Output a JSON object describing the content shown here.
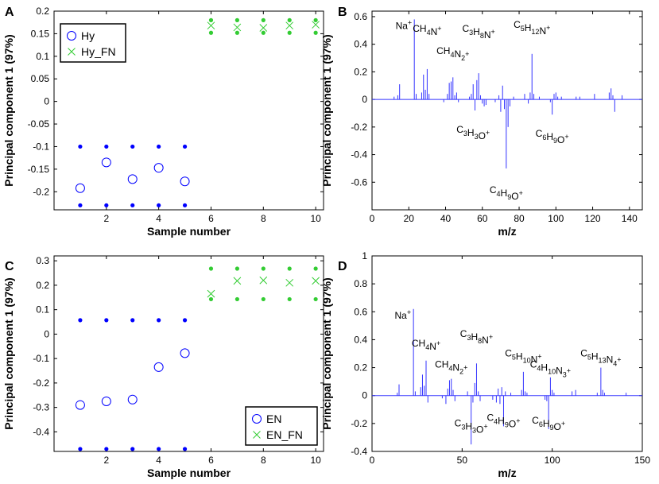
{
  "colors": {
    "hy": "#0000ff",
    "fn": "#33cc33",
    "spectrum": "#3333ff",
    "axis": "#000000"
  },
  "chart_data": [
    {
      "panel": "A",
      "type": "scatter",
      "xlabel": "Sample number",
      "ylabel": "Principal component 1 (97%)",
      "xlim": [
        0,
        10.3
      ],
      "ylim": [
        -0.24,
        0.2
      ],
      "xticks": [
        2,
        4,
        6,
        8,
        10
      ],
      "xtick_labels": [
        "2",
        "4",
        "6",
        "8",
        "10"
      ],
      "yticks": [
        0.2,
        0.15,
        0.1,
        0.05,
        0,
        -0.05,
        -0.1,
        -0.15,
        -0.2
      ],
      "ytick_labels": [
        "0.2",
        "0.15",
        "0.1",
        "0.05",
        "0",
        "-0.05",
        "-0.1",
        "-0.15",
        "-0.2"
      ],
      "legend": {
        "position": "top-left",
        "entries": [
          "Hy",
          "Hy_FN"
        ]
      },
      "series": [
        {
          "name": "Hy",
          "marker": "circle",
          "x": [
            1,
            2,
            3,
            4,
            5
          ],
          "y": [
            -0.192,
            -0.135,
            -0.172,
            -0.147,
            -0.177
          ],
          "upper": [
            -0.1,
            -0.1,
            -0.1,
            -0.1,
            -0.1
          ],
          "lower": [
            -0.23,
            -0.23,
            -0.23,
            -0.23,
            -0.23
          ]
        },
        {
          "name": "Hy_FN",
          "marker": "x",
          "x": [
            6,
            7,
            8,
            9,
            10
          ],
          "y": [
            0.168,
            0.164,
            0.163,
            0.168,
            0.17
          ],
          "upper": [
            0.18,
            0.18,
            0.18,
            0.18,
            0.18
          ],
          "lower": [
            0.152,
            0.152,
            0.152,
            0.152,
            0.152
          ]
        }
      ]
    },
    {
      "panel": "B",
      "type": "stem",
      "xlabel": "m/z",
      "ylabel": "Principal component 1 (97%)",
      "xlim": [
        0,
        147
      ],
      "ylim": [
        -0.8,
        0.64
      ],
      "xticks": [
        0,
        20,
        40,
        60,
        80,
        100,
        120,
        140
      ],
      "xtick_labels": [
        "0",
        "20",
        "40",
        "60",
        "80",
        "100",
        "120",
        "140"
      ],
      "yticks": [
        0.6,
        0.4,
        0.2,
        0,
        -0.2,
        -0.4,
        -0.6
      ],
      "ytick_labels": [
        "0.6",
        "0.4",
        "0.2",
        "0",
        "-0.2",
        "-0.4",
        "-0.6"
      ],
      "peaks": [
        [
          12,
          0.02
        ],
        [
          14,
          0.03
        ],
        [
          15,
          0.11
        ],
        [
          23,
          0.58
        ],
        [
          24,
          0.04
        ],
        [
          27,
          0.05
        ],
        [
          28,
          0.18
        ],
        [
          29,
          0.07
        ],
        [
          30,
          0.22
        ],
        [
          31,
          0.04
        ],
        [
          39,
          -0.02
        ],
        [
          41,
          0.04
        ],
        [
          42,
          0.12
        ],
        [
          43,
          0.13
        ],
        [
          44,
          0.16
        ],
        [
          45,
          0.03
        ],
        [
          46,
          0.05
        ],
        [
          47,
          -0.02
        ],
        [
          53,
          0.02
        ],
        [
          54,
          0.04
        ],
        [
          55,
          0.11
        ],
        [
          56,
          -0.08
        ],
        [
          57,
          0.14
        ],
        [
          58,
          0.19
        ],
        [
          59,
          0.03
        ],
        [
          60,
          -0.03
        ],
        [
          61,
          -0.05
        ],
        [
          62,
          -0.04
        ],
        [
          67,
          -0.02
        ],
        [
          69,
          0.03
        ],
        [
          70,
          -0.09
        ],
        [
          71,
          0.1
        ],
        [
          72,
          -0.07
        ],
        [
          73,
          -0.5
        ],
        [
          74,
          -0.2
        ],
        [
          75,
          -0.05
        ],
        [
          77,
          0.02
        ],
        [
          83,
          0.04
        ],
        [
          85,
          -0.03
        ],
        [
          86,
          0.05
        ],
        [
          87,
          0.33
        ],
        [
          88,
          0.04
        ],
        [
          91,
          0.02
        ],
        [
          97,
          -0.02
        ],
        [
          98,
          -0.11
        ],
        [
          99,
          0.04
        ],
        [
          100,
          0.05
        ],
        [
          101,
          0.02
        ],
        [
          103,
          0.02
        ],
        [
          111,
          0.02
        ],
        [
          113,
          0.02
        ],
        [
          121,
          0.04
        ],
        [
          129,
          0.05
        ],
        [
          130,
          0.08
        ],
        [
          131,
          0.03
        ],
        [
          132,
          -0.09
        ],
        [
          136,
          0.03
        ]
      ],
      "annotations": [
        {
          "label": "Na+",
          "x": 23,
          "y": 0.58
        },
        {
          "label": "CH4N+",
          "x": 30,
          "y": 0.49
        },
        {
          "label": "CH4N2+",
          "x": 44,
          "y": 0.33
        },
        {
          "label": "C3H8N+",
          "x": 58,
          "y": 0.49
        },
        {
          "label": "C5H12N+",
          "x": 87,
          "y": 0.52
        },
        {
          "label": "C3H3O+",
          "x": 55,
          "y": -0.24
        },
        {
          "label": "C6H9O+",
          "x": 98,
          "y": -0.27
        },
        {
          "label": "C4H9O+",
          "x": 73,
          "y": -0.68
        }
      ]
    },
    {
      "panel": "C",
      "type": "scatter",
      "xlabel": "Sample number",
      "ylabel": "Principal component 1 (97%)",
      "xlim": [
        0,
        10.3
      ],
      "ylim": [
        -0.48,
        0.32
      ],
      "xticks": [
        2,
        4,
        6,
        8,
        10
      ],
      "xtick_labels": [
        "2",
        "4",
        "6",
        "8",
        "10"
      ],
      "yticks": [
        0.3,
        0.2,
        0.1,
        0,
        -0.1,
        -0.2,
        -0.3,
        -0.4
      ],
      "ytick_labels": [
        "0.3",
        "0.2",
        "0.1",
        "0",
        "-0.1",
        "-0.2",
        "-0.3",
        "-0.4"
      ],
      "legend": {
        "position": "bottom-right",
        "entries": [
          "EN",
          "EN_FN"
        ]
      },
      "series": [
        {
          "name": "EN",
          "marker": "circle",
          "x": [
            1,
            2,
            3,
            4,
            5
          ],
          "y": [
            -0.29,
            -0.275,
            -0.268,
            -0.135,
            -0.078
          ],
          "upper": [
            0.057,
            0.057,
            0.057,
            0.057,
            0.057
          ],
          "lower": [
            -0.47,
            -0.47,
            -0.47,
            -0.47,
            -0.47
          ]
        },
        {
          "name": "EN_FN",
          "marker": "x",
          "x": [
            6,
            7,
            8,
            9,
            10
          ],
          "y": [
            0.165,
            0.218,
            0.22,
            0.21,
            0.218
          ],
          "upper": [
            0.268,
            0.268,
            0.268,
            0.268,
            0.268
          ],
          "lower": [
            0.143,
            0.143,
            0.143,
            0.143,
            0.143
          ]
        }
      ]
    },
    {
      "panel": "D",
      "type": "stem",
      "xlabel": "m/z",
      "ylabel": "Principal component 1 (97%)",
      "xlim": [
        0,
        150
      ],
      "ylim": [
        -0.4,
        1.0
      ],
      "xticks": [
        0,
        50,
        100,
        150
      ],
      "xtick_labels": [
        "0",
        "50",
        "100",
        "150"
      ],
      "yticks": [
        1,
        0.8,
        0.6,
        0.4,
        0.2,
        0,
        -0.2,
        -0.4
      ],
      "ytick_labels": [
        "1",
        "0.8",
        "0.6",
        "0.4",
        "0.2",
        "0",
        "-0.2",
        "-0.4"
      ],
      "peaks": [
        [
          14,
          0.02
        ],
        [
          15,
          0.08
        ],
        [
          23,
          0.62
        ],
        [
          24,
          0.03
        ],
        [
          27,
          0.06
        ],
        [
          28,
          0.15
        ],
        [
          29,
          0.07
        ],
        [
          30,
          0.25
        ],
        [
          31,
          -0.05
        ],
        [
          39,
          -0.02
        ],
        [
          41,
          -0.06
        ],
        [
          42,
          0.05
        ],
        [
          43,
          0.11
        ],
        [
          44,
          0.12
        ],
        [
          45,
          0.04
        ],
        [
          46,
          -0.04
        ],
        [
          53,
          0.03
        ],
        [
          55,
          -0.35
        ],
        [
          56,
          -0.05
        ],
        [
          57,
          0.09
        ],
        [
          58,
          0.23
        ],
        [
          59,
          0.03
        ],
        [
          60,
          -0.04
        ],
        [
          67,
          -0.03
        ],
        [
          69,
          -0.05
        ],
        [
          70,
          0.05
        ],
        [
          71,
          -0.06
        ],
        [
          72,
          0.06
        ],
        [
          73,
          -0.22
        ],
        [
          74,
          0.03
        ],
        [
          77,
          0.02
        ],
        [
          83,
          0.04
        ],
        [
          84,
          0.17
        ],
        [
          85,
          0.03
        ],
        [
          86,
          0.02
        ],
        [
          96,
          -0.03
        ],
        [
          97,
          -0.04
        ],
        [
          98,
          -0.24
        ],
        [
          99,
          0.13
        ],
        [
          100,
          0.04
        ],
        [
          101,
          0.02
        ],
        [
          111,
          0.03
        ],
        [
          113,
          0.04
        ],
        [
          125,
          0.02
        ],
        [
          127,
          0.2
        ],
        [
          128,
          0.04
        ],
        [
          129,
          0.02
        ],
        [
          141,
          0.02
        ]
      ],
      "annotations": [
        {
          "label": "Na+",
          "x": 23,
          "y": 0.62
        },
        {
          "label": "CH4N+",
          "x": 30,
          "y": 0.35
        },
        {
          "label": "CH4N2+",
          "x": 44,
          "y": 0.2
        },
        {
          "label": "C3H8N+",
          "x": 58,
          "y": 0.42
        },
        {
          "label": "C5H10N+",
          "x": 84,
          "y": 0.28
        },
        {
          "label": "C4H10N3+",
          "x": 99,
          "y": 0.2
        },
        {
          "label": "C5H13N4+",
          "x": 127,
          "y": 0.28
        },
        {
          "label": "C3H3O+",
          "x": 55,
          "y": -0.22
        },
        {
          "label": "C4H9O+",
          "x": 73,
          "y": -0.18
        },
        {
          "label": "C6H9O+",
          "x": 98,
          "y": -0.2
        }
      ]
    }
  ]
}
